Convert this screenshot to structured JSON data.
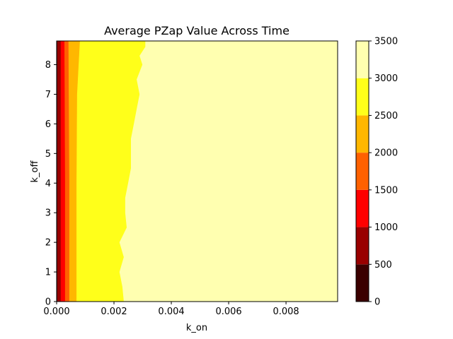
{
  "chart_data": {
    "type": "heatmap",
    "title": "Average PZap Value Across Time",
    "xlabel": "k_on",
    "ylabel": "k_off",
    "xlim": [
      0,
      0.0098
    ],
    "ylim": [
      0,
      8.8
    ],
    "x_ticks": [
      "0.000",
      "0.002",
      "0.004",
      "0.006",
      "0.008"
    ],
    "x_tick_values": [
      0,
      0.002,
      0.004,
      0.006,
      0.008
    ],
    "y_ticks": [
      "0",
      "1",
      "2",
      "3",
      "4",
      "5",
      "6",
      "7",
      "8"
    ],
    "y_tick_values": [
      0,
      1,
      2,
      3,
      4,
      5,
      6,
      7,
      8
    ],
    "grid": false,
    "colorbar": {
      "levels": [
        0,
        500,
        1000,
        1500,
        2000,
        2500,
        3000,
        3500
      ],
      "tick_labels": [
        "0",
        "500",
        "1000",
        "1500",
        "2000",
        "2500",
        "3000",
        "3500"
      ],
      "colors": [
        "#3b0000",
        "#990000",
        "#ff0000",
        "#ff6100",
        "#ffb700",
        "#ffff1a",
        "#ffffb0"
      ]
    },
    "level_boundaries": [
      {
        "between": "0-500 / 500-1000",
        "points": [
          [
            3e-05,
            0
          ],
          [
            3e-05,
            8.8
          ]
        ]
      },
      {
        "between": "500-1000 / 1000-1500",
        "points": [
          [
            0.00015,
            0
          ],
          [
            0.00015,
            8.8
          ]
        ]
      },
      {
        "between": "1000-1500 / 1500-2000",
        "points": [
          [
            0.0003,
            0
          ],
          [
            0.0003,
            4
          ],
          [
            0.00028,
            8.8
          ]
        ]
      },
      {
        "between": "1500-2000 / 2000-2500",
        "points": [
          [
            0.00045,
            0
          ],
          [
            0.00045,
            4
          ],
          [
            0.00042,
            8.8
          ]
        ]
      },
      {
        "between": "2000-2500 / 2500-3000",
        "points": [
          [
            0.0007,
            0
          ],
          [
            0.0007,
            4
          ],
          [
            0.00072,
            7
          ],
          [
            0.00082,
            8.8
          ]
        ]
      },
      {
        "between": "2500-3000 / 3000-3500",
        "points": [
          [
            0.00235,
            0
          ],
          [
            0.0023,
            0.5
          ],
          [
            0.0022,
            1
          ],
          [
            0.00235,
            1.5
          ],
          [
            0.0022,
            2
          ],
          [
            0.00245,
            2.5
          ],
          [
            0.0024,
            3
          ],
          [
            0.0024,
            3.5
          ],
          [
            0.0025,
            4
          ],
          [
            0.0026,
            4.5
          ],
          [
            0.0026,
            5
          ],
          [
            0.0026,
            5.5
          ],
          [
            0.0027,
            6
          ],
          [
            0.0028,
            6.5
          ],
          [
            0.0029,
            7
          ],
          [
            0.0028,
            7.5
          ],
          [
            0.003,
            8
          ],
          [
            0.0029,
            8.3
          ],
          [
            0.0031,
            8.6
          ],
          [
            0.0031,
            8.8
          ]
        ]
      }
    ]
  }
}
